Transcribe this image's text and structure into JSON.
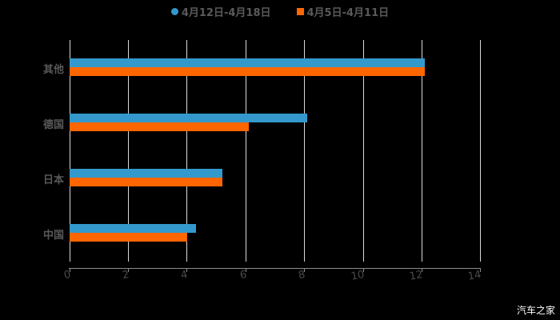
{
  "chart_data": {
    "type": "bar",
    "orientation": "horizontal",
    "title": "",
    "categories": [
      "其他",
      "德国",
      "日本",
      "中国"
    ],
    "series": [
      {
        "name": "4月12日-4月18日",
        "color": "#3399cc",
        "marker": "circle",
        "values": [
          12.1,
          8.1,
          5.2,
          4.3
        ]
      },
      {
        "name": "4月5日-4月11日",
        "color": "#ff6600",
        "marker": "square",
        "values": [
          12.1,
          6.1,
          5.2,
          4.0
        ]
      }
    ],
    "xlabel": "",
    "ylabel": "",
    "xlim": [
      0,
      14
    ],
    "xticks": [
      "0",
      "2",
      "4",
      "6",
      "8",
      "10",
      "12",
      "14"
    ],
    "grid": true,
    "legend_position": "top"
  },
  "legend": {
    "items": [
      {
        "label": "4月12日-4月18日",
        "color": "#3399cc"
      },
      {
        "label": "4月5日-4月11日",
        "color": "#ff6600"
      }
    ]
  },
  "watermark": "汽车之家"
}
